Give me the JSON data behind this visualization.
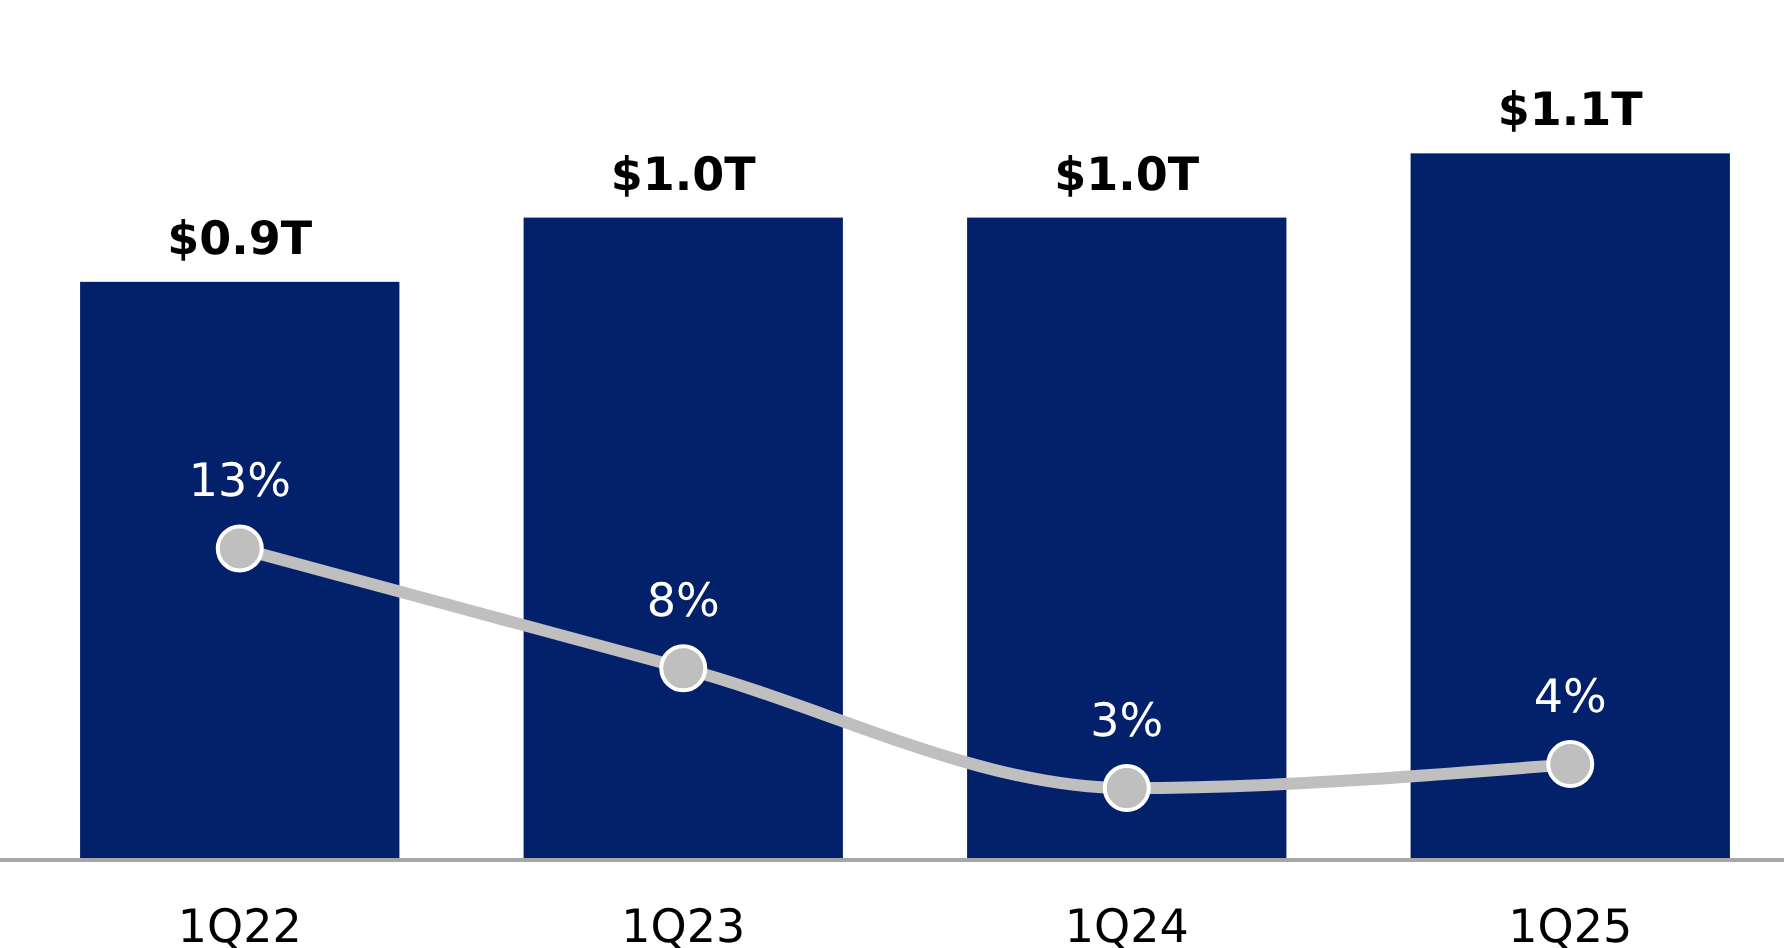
{
  "chart_data": {
    "type": "bar",
    "categories": [
      "1Q22",
      "1Q23",
      "1Q24",
      "1Q25"
    ],
    "series": [
      {
        "color": "#03206b",
        "values": [
          0.9,
          1.0,
          1.0,
          1.1
        ],
        "value_labels": [
          "$0.9T",
          "$1.0T",
          "$1.0T",
          "$1.1T"
        ]
      },
      {
        "type": "line",
        "axis": "y2",
        "color": "#bfbfbf",
        "marker": "circle",
        "values": [
          13,
          8,
          3,
          4
        ],
        "value_labels": [
          "13%",
          "8%",
          "3%",
          "4%"
        ]
      }
    ]
  }
}
